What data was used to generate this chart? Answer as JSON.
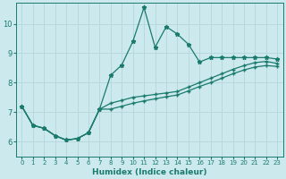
{
  "xlabel": "Humidex (Indice chaleur)",
  "bg_color": "#cce9ed",
  "line_color": "#1a7a6e",
  "grid_color": "#b8d8dc",
  "xlim": [
    -0.5,
    23.5
  ],
  "ylim": [
    5.5,
    10.7
  ],
  "xticks": [
    0,
    1,
    2,
    3,
    4,
    5,
    6,
    7,
    8,
    9,
    10,
    11,
    12,
    13,
    14,
    15,
    16,
    17,
    18,
    19,
    20,
    21,
    22,
    23
  ],
  "yticks": [
    6,
    7,
    8,
    9,
    10
  ],
  "line1_x": [
    0,
    1,
    2,
    3,
    4,
    5,
    6,
    7,
    8,
    9,
    10,
    11,
    12,
    13,
    14,
    15,
    16,
    17,
    18,
    19,
    20,
    21,
    22,
    23
  ],
  "line1_y": [
    7.2,
    6.55,
    6.45,
    6.2,
    6.05,
    6.1,
    6.3,
    7.1,
    8.25,
    8.6,
    9.4,
    10.55,
    9.2,
    9.9,
    9.65,
    9.3,
    8.7,
    8.85,
    8.85,
    8.85,
    8.85,
    8.85,
    8.85,
    8.8
  ],
  "line2_x": [
    0,
    1,
    2,
    3,
    4,
    5,
    6,
    7,
    8,
    9,
    10,
    11,
    12,
    13,
    14,
    15,
    16,
    17,
    18,
    19,
    20,
    21,
    22,
    23
  ],
  "line2_y": [
    7.2,
    6.55,
    6.45,
    6.2,
    6.05,
    6.1,
    6.3,
    7.1,
    7.3,
    7.4,
    7.5,
    7.55,
    7.6,
    7.65,
    7.7,
    7.85,
    8.0,
    8.15,
    8.3,
    8.45,
    8.58,
    8.68,
    8.72,
    8.65
  ],
  "line3_x": [
    0,
    1,
    2,
    3,
    4,
    5,
    6,
    7,
    8,
    9,
    10,
    11,
    12,
    13,
    14,
    15,
    16,
    17,
    18,
    19,
    20,
    21,
    22,
    23
  ],
  "line3_y": [
    7.2,
    6.55,
    6.45,
    6.2,
    6.05,
    6.1,
    6.3,
    7.1,
    7.1,
    7.2,
    7.3,
    7.38,
    7.45,
    7.52,
    7.58,
    7.72,
    7.87,
    8.0,
    8.15,
    8.3,
    8.43,
    8.53,
    8.58,
    8.55
  ]
}
